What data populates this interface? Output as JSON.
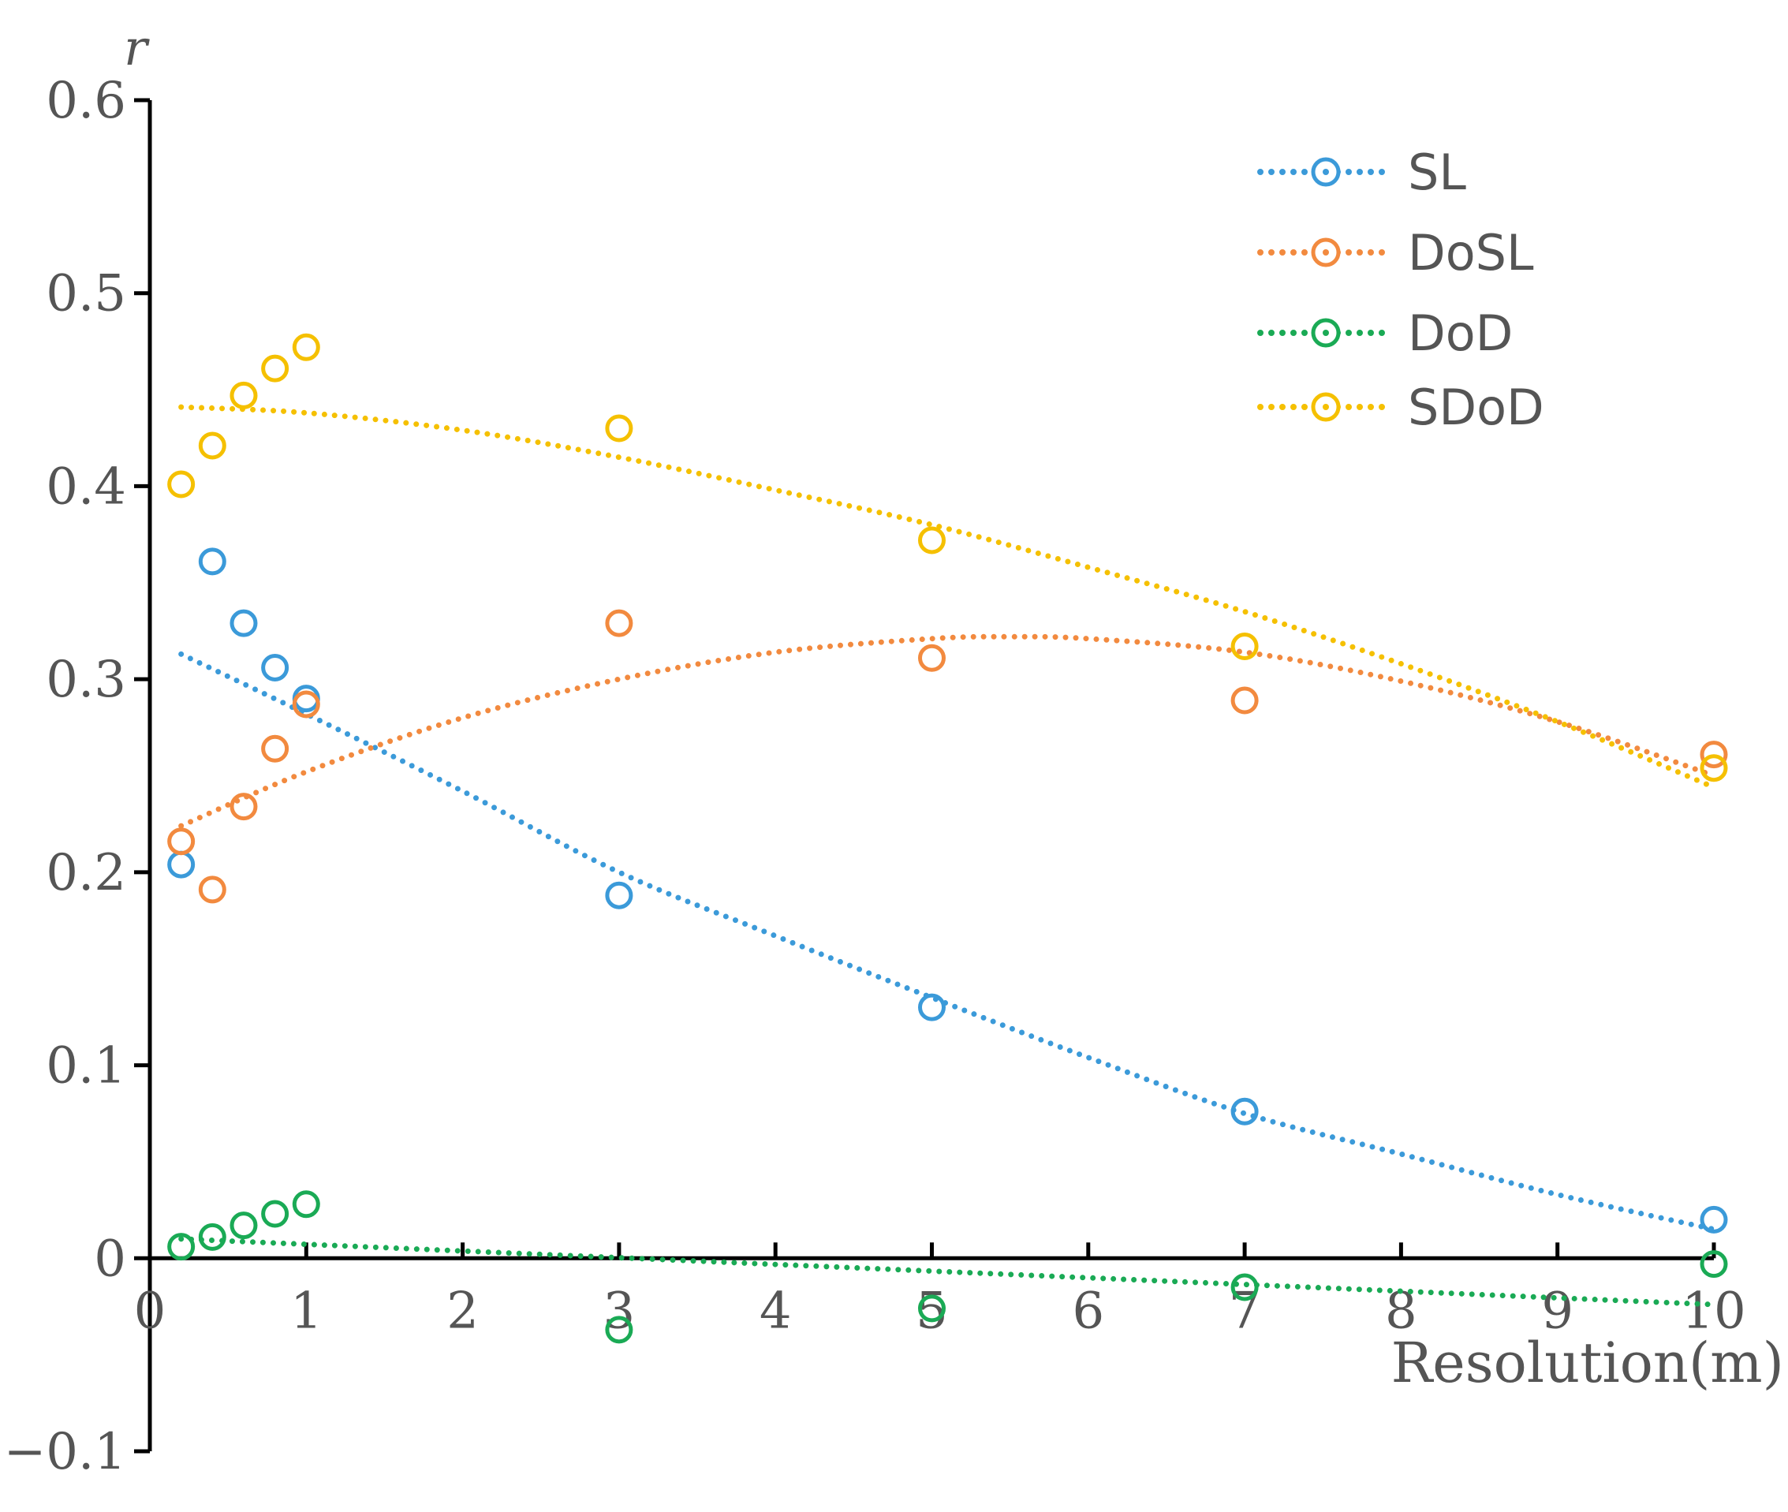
{
  "chart_data": {
    "type": "scatter",
    "title": "",
    "xlabel": "Resolution(m)",
    "ylabel": "r",
    "xlim": [
      0,
      10
    ],
    "ylim": [
      -0.1,
      0.6
    ],
    "xticks": [
      0,
      1,
      2,
      3,
      4,
      5,
      6,
      7,
      8,
      9,
      10
    ],
    "yticks": [
      -0.1,
      0,
      0.1,
      0.2,
      0.3,
      0.4,
      0.5,
      0.6
    ],
    "ytick_labels": [
      "−0.1",
      "0",
      "0.1",
      "0.2",
      "0.3",
      "0.4",
      "0.5",
      "0.6"
    ],
    "grid": false,
    "legend_position": "top-right",
    "series": [
      {
        "name": "SL",
        "color": "#3b9ad9",
        "marker": "open-circle",
        "trendline": "dotted quadratic",
        "x": [
          0.2,
          0.4,
          0.6,
          0.8,
          1,
          3,
          5,
          7,
          10
        ],
        "y": [
          0.204,
          0.361,
          0.329,
          0.306,
          0.29,
          0.188,
          0.13,
          0.076,
          0.02
        ],
        "fit_x": [
          0.2,
          1,
          2,
          3,
          4,
          5,
          6,
          7,
          8,
          9,
          10
        ],
        "fit_y": [
          0.313,
          0.282,
          0.242,
          0.2,
          0.167,
          0.135,
          0.104,
          0.075,
          0.054,
          0.033,
          0.015
        ]
      },
      {
        "name": "DoSL",
        "color": "#f28a3f",
        "marker": "open-circle",
        "trendline": "dotted quadratic",
        "x": [
          0.2,
          0.4,
          0.6,
          0.8,
          1,
          3,
          5,
          7,
          10
        ],
        "y": [
          0.216,
          0.191,
          0.234,
          0.264,
          0.287,
          0.329,
          0.311,
          0.289,
          0.261
        ],
        "fit_x": [
          0.2,
          1,
          2,
          3,
          4,
          5,
          5.5,
          6,
          7,
          8,
          9,
          10
        ],
        "fit_y": [
          0.224,
          0.252,
          0.28,
          0.3,
          0.314,
          0.321,
          0.322,
          0.321,
          0.314,
          0.299,
          0.278,
          0.25
        ]
      },
      {
        "name": "DoD",
        "color": "#1aaa55",
        "marker": "open-circle",
        "trendline": "dotted linear",
        "x": [
          0.2,
          0.4,
          0.6,
          0.8,
          1,
          3,
          5,
          7,
          10
        ],
        "y": [
          0.006,
          0.011,
          0.017,
          0.023,
          0.028,
          -0.037,
          -0.026,
          -0.015,
          -0.003
        ],
        "fit_x": [
          0.2,
          10
        ],
        "fit_y": [
          0.01,
          -0.024
        ]
      },
      {
        "name": "SDoD",
        "color": "#f5c000",
        "marker": "open-circle",
        "trendline": "dotted quadratic",
        "x": [
          0.2,
          0.4,
          0.6,
          0.8,
          1,
          3,
          5,
          7,
          10
        ],
        "y": [
          0.401,
          0.421,
          0.447,
          0.461,
          0.472,
          0.43,
          0.372,
          0.317,
          0.254
        ],
        "fit_x": [
          0.2,
          1,
          2,
          3,
          4,
          5,
          6,
          7,
          8,
          9,
          10
        ],
        "fit_y": [
          0.441,
          0.438,
          0.429,
          0.415,
          0.398,
          0.38,
          0.358,
          0.335,
          0.308,
          0.278,
          0.244
        ]
      }
    ]
  }
}
